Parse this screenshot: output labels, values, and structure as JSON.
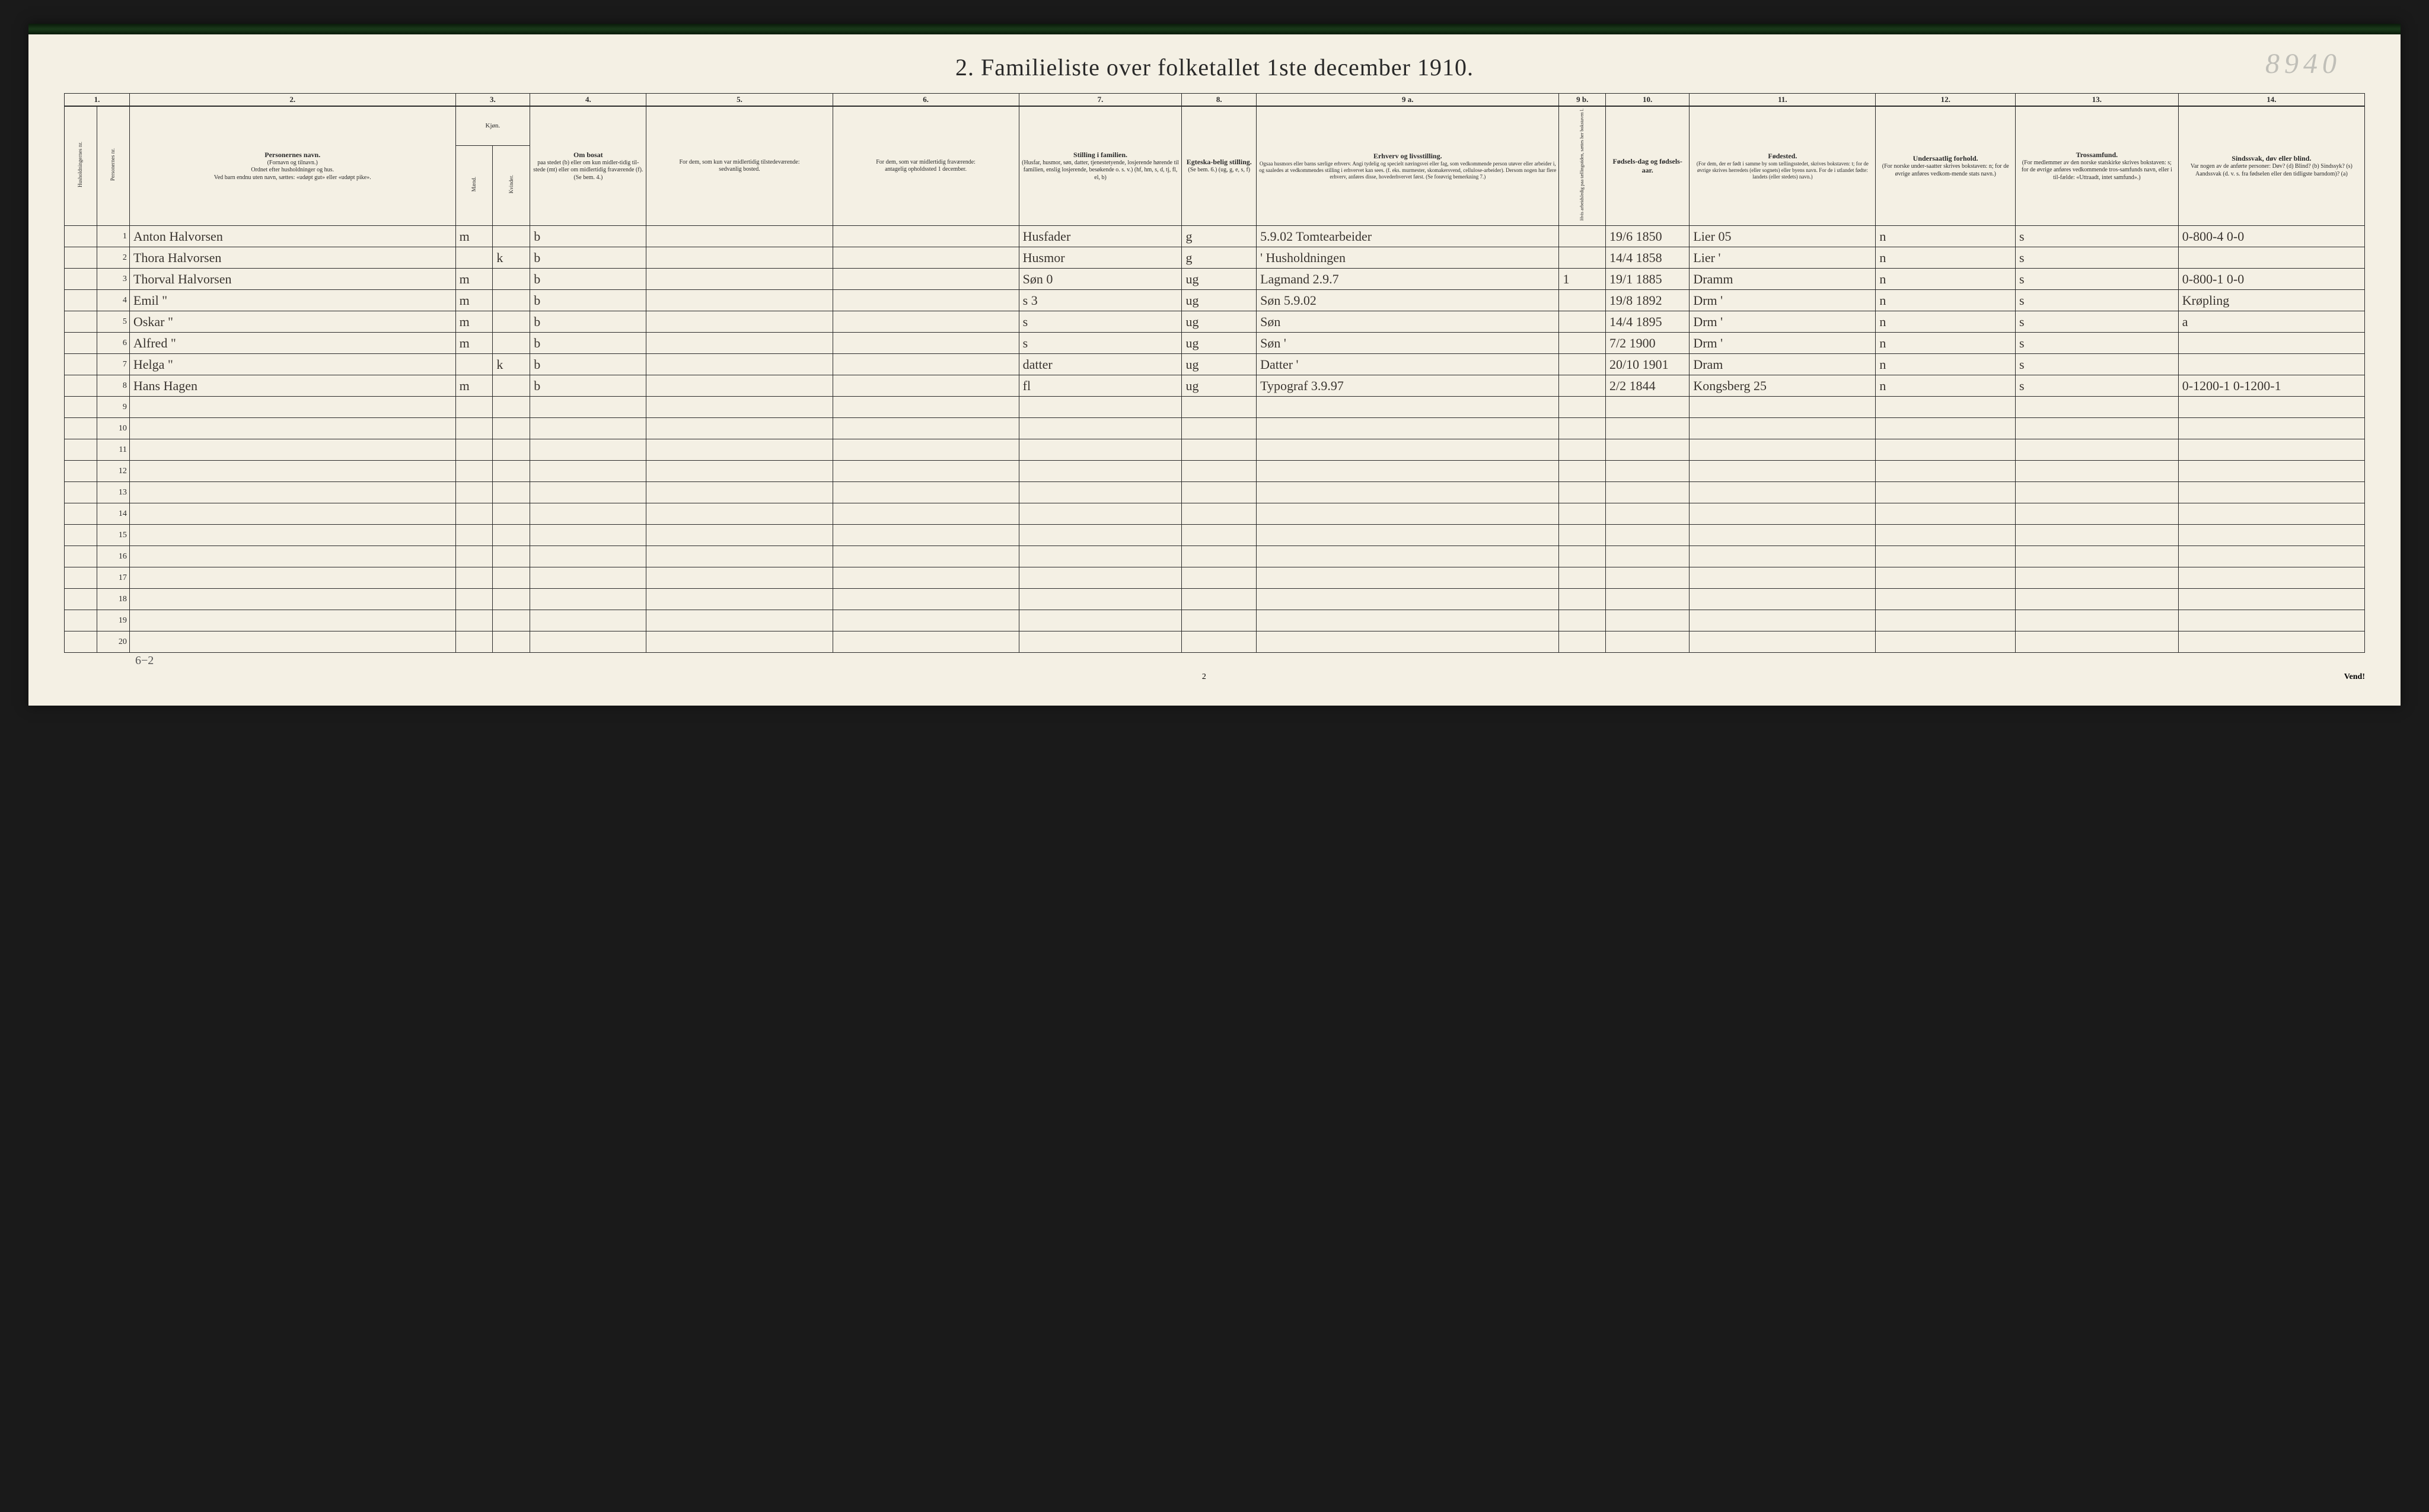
{
  "title": "2.  Familieliste over folketallet 1ste december 1910.",
  "page_number_handwritten": "8940",
  "footer_page": "2",
  "footer_right": "Vend!",
  "tally_note": "6−2",
  "colors": {
    "paper": "#f4f0e4",
    "ink": "#2a2a2a",
    "handwriting": "#3a3530",
    "faint_pencil": "#c0bfb8",
    "border_top": "#0a1a0a"
  },
  "column_numbers": [
    "1.",
    "2.",
    "3.",
    "4.",
    "5.",
    "6.",
    "7.",
    "8.",
    "9 a.",
    "9 b.",
    "10.",
    "11.",
    "12.",
    "13.",
    "14."
  ],
  "headers": {
    "col1": {
      "a": "Husholdningernes nr.",
      "b": "Personernes nr."
    },
    "col2": {
      "title": "Personernes navn.",
      "sub1": "(Fornavn og tilnavn.)",
      "sub2": "Ordnet efter husholdninger og hus.",
      "sub3": "Ved barn endnu uten navn, sættes: «udøpt gut» eller «udøpt pike»."
    },
    "col3": {
      "title": "Kjøn.",
      "a": "Mænd.",
      "b": "Kvinder.",
      "foot": "m. | k."
    },
    "col4": {
      "title": "Om bosat",
      "sub": "paa stedet (b) eller om kun midler-tidig til-stede (mt) eller om midlertidig fraværende (f). (Se bem. 4.)"
    },
    "col5": {
      "title": "For dem, som kun var midlertidig tilstedeværende:",
      "sub": "sedvanlig bosted."
    },
    "col6": {
      "title": "For dem, som var midlertidig fraværende:",
      "sub": "antagelig opholdssted 1 december."
    },
    "col7": {
      "title": "Stilling i familien.",
      "sub": "(Husfar, husmor, søn, datter, tjenestetyende, losjerende hørende til familien, enslig losjerende, besøkende o. s. v.) (hf, hm, s, d, tj, fl, el, b)"
    },
    "col8": {
      "title": "Egteska-belig stilling.",
      "sub": "(Se bem. 6.) (ug, g, e, s, f)"
    },
    "col9a": {
      "title": "Erhverv og livsstilling.",
      "sub": "Ogsaa husmors eller barns særlige erhverv. Angi tydelig og specielt næringsvei eller fag, som vedkommende person utøver eller arbeider i, og saaledes at vedkommendes stilling i erhvervet kan sees. (f. eks. murmester, skomakersvend, cellulose-arbeider). Dersom nogen har flere erhverv, anføres disse, hovederhvervet først. (Se forøvrig bemerkning 7.)"
    },
    "col9b": {
      "sub": "Hvis arbeidsledig paa tællingstiden, sættes her bokstaven l."
    },
    "col10": {
      "title": "Fødsels-dag og fødsels-aar."
    },
    "col11": {
      "title": "Fødested.",
      "sub": "(For dem, der er født i samme by som tællingsstedet, skrives bokstaven: t; for de øvrige skrives herredets (eller sognets) eller byens navn. For de i utlandet fødte: landets (eller stedets) navn.)"
    },
    "col12": {
      "title": "Undersaatlig forhold.",
      "sub": "(For norske under-saatter skrives bokstaven: n; for de øvrige anføres vedkom-mende stats navn.)"
    },
    "col13": {
      "title": "Trossamfund.",
      "sub": "(For medlemmer av den norske statskirke skrives bokstaven: s; for de øvrige anføres vedkommende tros-samfunds navn, eller i til-fælde: «Uttraadt, intet samfund».)"
    },
    "col14": {
      "title": "Sindssvak, døv eller blind.",
      "sub": "Var nogen av de anførte personer: Døv? (d)  Blind? (b)  Sindssyk? (s)  Aandssvak (d. v. s. fra fødselen eller den tidligste barndom)? (a)"
    }
  },
  "rows": [
    {
      "num": "1",
      "name": "Anton Halvorsen",
      "sexM": "m",
      "sexK": "",
      "res": "b",
      "temp": "",
      "absent": "",
      "fam": "Husfader",
      "mar": "g",
      "occ": "5.9.02 Tomtearbeider",
      "l": "",
      "birth": "19/6 1850",
      "place": "Lier     05",
      "nat": "n",
      "rel": "s",
      "dis": "0-800-4  0-0"
    },
    {
      "num": "2",
      "name": "Thora Halvorsen",
      "sexM": "",
      "sexK": "k",
      "res": "b",
      "temp": "",
      "absent": "",
      "fam": "Husmor",
      "mar": "g",
      "occ": "' Husholdningen",
      "l": "",
      "birth": "14/4 1858",
      "place": "Lier      '",
      "nat": "n",
      "rel": "s",
      "dis": ""
    },
    {
      "num": "3",
      "name": "Thorval Halvorsen",
      "sexM": "m",
      "sexK": "",
      "res": "b",
      "temp": "",
      "absent": "",
      "fam": "Søn  0",
      "mar": "ug",
      "occ": "Lagmand  2.9.7",
      "l": "1",
      "birth": "19/1 1885",
      "place": "Dramm",
      "nat": "n",
      "rel": "s",
      "dis": "0-800-1  0-0"
    },
    {
      "num": "4",
      "name": "Emil       \"",
      "sexM": "m",
      "sexK": "",
      "res": "b",
      "temp": "",
      "absent": "",
      "fam": "s   3",
      "mar": "ug",
      "occ": "Søn   5.9.02",
      "l": "",
      "birth": "19/8 1892",
      "place": "Drm   '",
      "nat": "n",
      "rel": "s",
      "dis": "Krøpling"
    },
    {
      "num": "5",
      "name": "Oskar     \"",
      "sexM": "m",
      "sexK": "",
      "res": "b",
      "temp": "",
      "absent": "",
      "fam": "s",
      "mar": "ug",
      "occ": "Søn",
      "l": "",
      "birth": "14/4 1895",
      "place": "Drm   '",
      "nat": "n",
      "rel": "s",
      "dis": "a"
    },
    {
      "num": "6",
      "name": "Alfred    \"",
      "sexM": "m",
      "sexK": "",
      "res": "b",
      "temp": "",
      "absent": "",
      "fam": "s",
      "mar": "ug",
      "occ": "Søn       '",
      "l": "",
      "birth": "7/2 1900",
      "place": "Drm   '",
      "nat": "n",
      "rel": "s",
      "dis": ""
    },
    {
      "num": "7",
      "name": "Helga     \"",
      "sexM": "",
      "sexK": "k",
      "res": "b",
      "temp": "",
      "absent": "",
      "fam": "datter",
      "mar": "ug",
      "occ": "Datter    '",
      "l": "",
      "birth": "20/10 1901",
      "place": "Dram",
      "nat": "n",
      "rel": "s",
      "dis": ""
    },
    {
      "num": "8",
      "name": "Hans Hagen",
      "sexM": "m",
      "sexK": "",
      "res": "b",
      "temp": "",
      "absent": "",
      "fam": "fl",
      "mar": "ug",
      "occ": "Typograf  3.9.97",
      "l": "",
      "birth": "2/2 1844",
      "place": "Kongsberg  25",
      "nat": "n",
      "rel": "s",
      "dis": "0-1200-1  0-1200-1"
    },
    {
      "num": "9"
    },
    {
      "num": "10"
    },
    {
      "num": "11"
    },
    {
      "num": "12"
    },
    {
      "num": "13"
    },
    {
      "num": "14"
    },
    {
      "num": "15"
    },
    {
      "num": "16"
    },
    {
      "num": "17"
    },
    {
      "num": "18"
    },
    {
      "num": "19"
    },
    {
      "num": "20"
    }
  ]
}
